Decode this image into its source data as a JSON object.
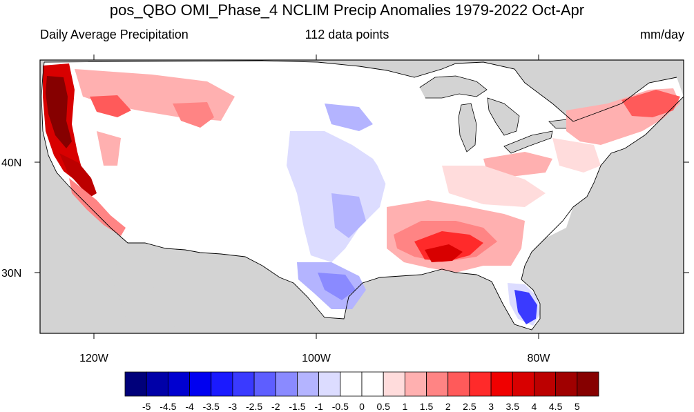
{
  "title": "pos_QBO OMI_Phase_4 NCLIM Precip Anomalies 1979-2022 Oct-Apr",
  "left_subtitle": "Daily Average Precipitation",
  "center_subtitle": "112 data points",
  "right_subtitle": "mm/day",
  "map": {
    "lon_labels": [
      "120W",
      "100W",
      "80W"
    ],
    "lat_labels": [
      "40N",
      "30N"
    ],
    "land_color": "#ffffff",
    "ocean_no_data_color": "#d3d3d3"
  },
  "colorbar": {
    "colors": [
      "#00007a",
      "#0000a8",
      "#0000d0",
      "#0000f0",
      "#1a1aff",
      "#3a3aff",
      "#5e5eff",
      "#8a8aff",
      "#b4b4ff",
      "#dcdcff",
      "#ffffff",
      "#ffffff",
      "#ffdcdc",
      "#ffb0b0",
      "#ff8484",
      "#ff5a5a",
      "#ff2a2a",
      "#f00000",
      "#d80000",
      "#bc0000",
      "#a00000",
      "#860000"
    ],
    "labels": [
      "-5",
      "-4.5",
      "-4",
      "-3.5",
      "-3",
      "-2.5",
      "-2",
      "-1.5",
      "-1",
      "-0.5",
      "0",
      "0.5",
      "1",
      "1.5",
      "2",
      "2.5",
      "3",
      "3.5",
      "4",
      "4.5",
      "5"
    ]
  }
}
